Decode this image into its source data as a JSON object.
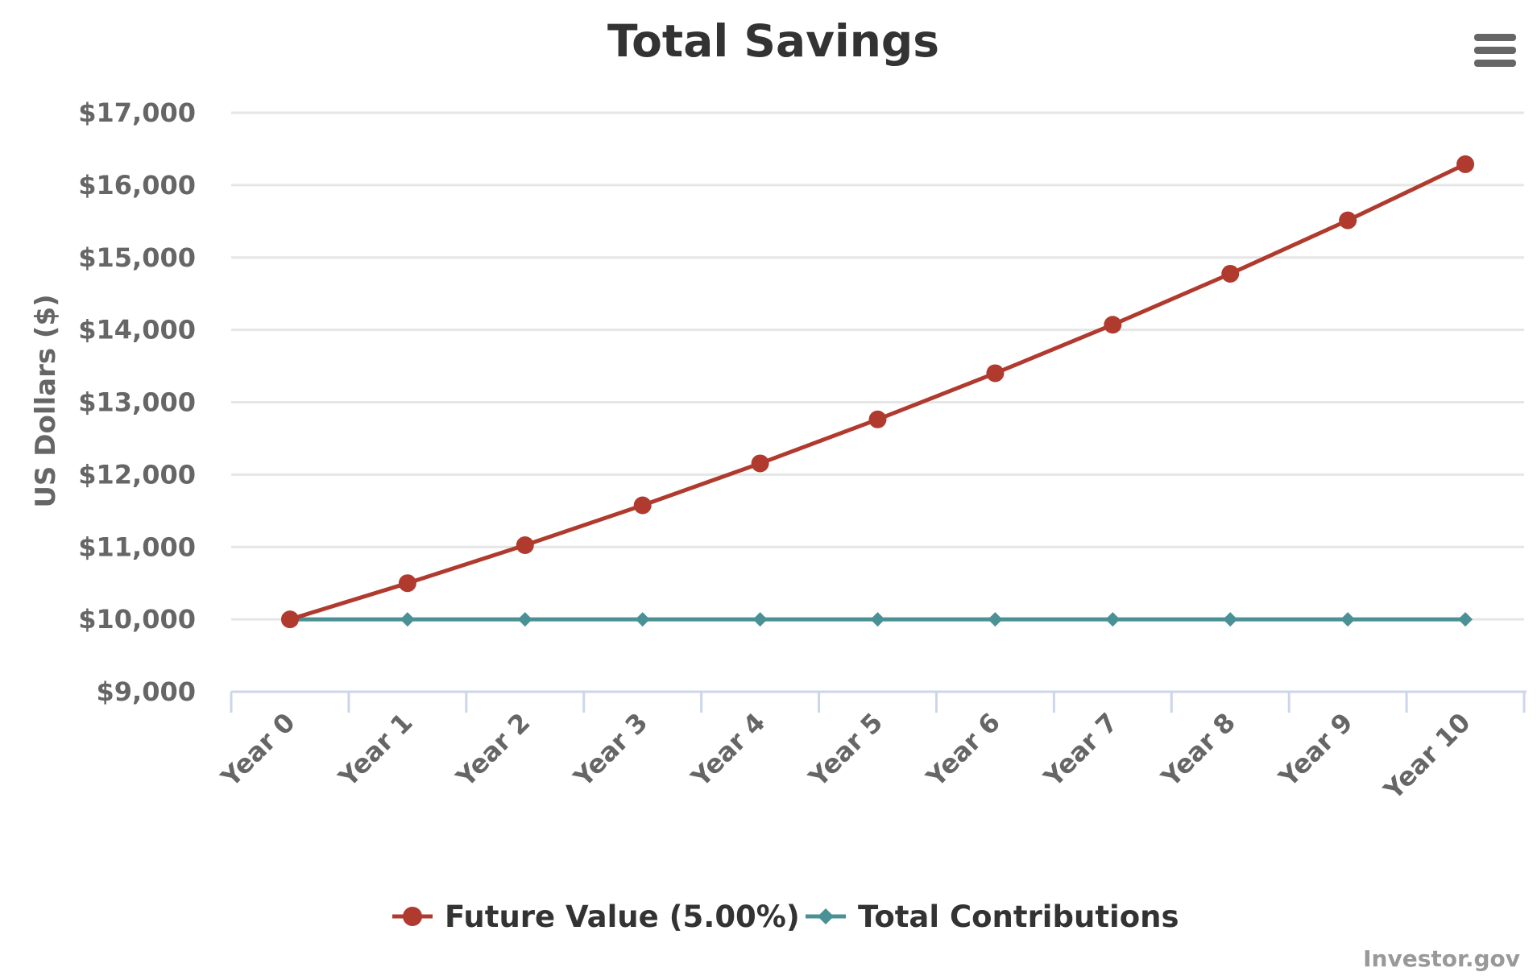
{
  "chart_data": {
    "type": "line",
    "title": "Total Savings",
    "ylabel": "US Dollars ($)",
    "xlabel": "",
    "categories": [
      "Year 0",
      "Year 1",
      "Year 2",
      "Year 3",
      "Year 4",
      "Year 5",
      "Year 6",
      "Year 7",
      "Year 8",
      "Year 9",
      "Year 10"
    ],
    "y_ticks": [
      "$9,000",
      "$10,000",
      "$11,000",
      "$12,000",
      "$13,000",
      "$14,000",
      "$15,000",
      "$16,000",
      "$17,000"
    ],
    "ylim": [
      9000,
      17000
    ],
    "grid": true,
    "legend_position": "bottom-center",
    "series": [
      {
        "name": "Future Value (5.00%)",
        "color": "#b03a2e",
        "marker": "circle",
        "values": [
          10000,
          10500,
          11025,
          11576,
          12155,
          12763,
          13401,
          14071,
          14775,
          15513,
          16289
        ]
      },
      {
        "name": "Total Contributions",
        "color": "#4a9195",
        "marker": "diamond",
        "values": [
          10000,
          10000,
          10000,
          10000,
          10000,
          10000,
          10000,
          10000,
          10000,
          10000,
          10000
        ]
      }
    ]
  },
  "credit": "Investor.gov",
  "menu": {
    "icon": "hamburger-menu-icon"
  }
}
